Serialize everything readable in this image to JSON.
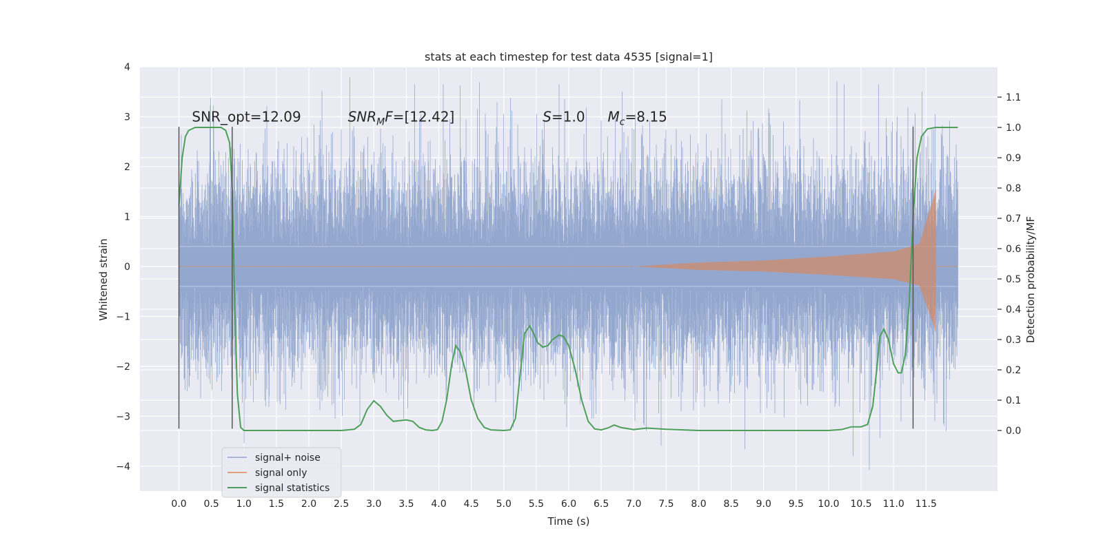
{
  "chart_data": {
    "type": "line",
    "title": "stats at each timestep for test data 4535 [signal=1]",
    "xlabel": "Time (s)",
    "ylabel": "Whitened strain",
    "y2label": "Detection probability/MF",
    "xlim": [
      -0.6,
      12.6
    ],
    "ylim": [
      -4.5,
      4.0
    ],
    "y2lim": [
      -0.2,
      1.2
    ],
    "x_ticks": [
      0.0,
      0.5,
      1.0,
      1.5,
      2.0,
      2.5,
      3.0,
      3.5,
      4.0,
      4.5,
      5.0,
      5.5,
      6.0,
      6.5,
      7.0,
      7.5,
      8.0,
      8.5,
      9.0,
      9.5,
      10.0,
      10.5,
      11.0,
      11.5
    ],
    "x_tick_labels": [
      "0.0",
      "0.5",
      "1.0",
      "1.5",
      "2.0",
      "2.5",
      "3.0",
      "3.5",
      "4.0",
      "4.5",
      "5.0",
      "5.5",
      "6.0",
      "6.5",
      "7.0",
      "7.5",
      "8.0",
      "8.5",
      "9.0",
      "9.5",
      "10.0",
      "10.5",
      "11.0",
      "11.5"
    ],
    "y_ticks": [
      4,
      3,
      2,
      1,
      0,
      -1,
      -2,
      -3,
      -4
    ],
    "y_tick_labels": [
      "4",
      "3",
      "2",
      "1",
      "0",
      "−1",
      "−2",
      "−3",
      "−4"
    ],
    "y2_ticks": [
      1.1,
      1.0,
      0.9,
      0.8,
      0.7,
      0.6,
      0.5,
      0.4,
      0.3,
      0.2,
      0.1,
      0.0
    ],
    "y2_tick_labels": [
      "1.1",
      "1.0",
      "0.9",
      "0.8",
      "0.7",
      "0.6",
      "0.5",
      "0.4",
      "0.3",
      "0.2",
      "0.1",
      "0.0"
    ],
    "grid": true,
    "legend_position": "lower-left",
    "annotations": [
      {
        "text": "SNR_opt=12.09",
        "x": 0.2,
        "y": 2.9
      },
      {
        "text": "SNR_MF=[12.42]",
        "x": 2.6,
        "y": 2.9
      },
      {
        "text": "S=1.0",
        "x": 5.6,
        "y": 2.9
      },
      {
        "text": "M_c=8.15",
        "x": 6.6,
        "y": 2.9
      }
    ],
    "vertical_lines": [
      {
        "x": 0.0,
        "y_range": [
          -3.25,
          2.8
        ]
      },
      {
        "x": 0.82,
        "y_range": [
          -3.25,
          2.8
        ]
      },
      {
        "x": 11.3,
        "y_range": [
          -3.25,
          2.8
        ]
      }
    ],
    "series": [
      {
        "name": "signal+ noise",
        "color": "#8fa4cc",
        "axis": "left",
        "t_range": [
          0.0,
          11.99
        ],
        "typical_abs_max": 2.3,
        "peak_min": -4.1,
        "peak_max": 3.65
      },
      {
        "name": "signal only",
        "color": "#dd8452",
        "axis": "left",
        "t_range": [
          0.0,
          11.99
        ],
        "onset": 7.0,
        "merger": 11.65,
        "amplitude_envelope": [
          {
            "t": 7.0,
            "a": 0.0
          },
          {
            "t": 8.0,
            "a": 0.08
          },
          {
            "t": 9.0,
            "a": 0.12
          },
          {
            "t": 10.0,
            "a": 0.2
          },
          {
            "t": 11.0,
            "a": 0.3
          },
          {
            "t": 11.4,
            "a": 0.45
          },
          {
            "t": 11.6,
            "a": 1.3
          },
          {
            "t": 11.65,
            "a": 1.55
          }
        ]
      },
      {
        "name": "signal statistics",
        "color": "#4c9f59",
        "axis": "right",
        "points": [
          [
            0.0,
            0.74
          ],
          [
            0.05,
            0.9
          ],
          [
            0.1,
            0.97
          ],
          [
            0.15,
            0.99
          ],
          [
            0.25,
            1.0
          ],
          [
            0.4,
            1.0
          ],
          [
            0.55,
            1.0
          ],
          [
            0.65,
            1.0
          ],
          [
            0.72,
            0.99
          ],
          [
            0.78,
            0.95
          ],
          [
            0.82,
            0.8
          ],
          [
            0.86,
            0.4
          ],
          [
            0.9,
            0.12
          ],
          [
            0.95,
            0.01
          ],
          [
            1.0,
            0.0
          ],
          [
            1.2,
            0.0
          ],
          [
            1.5,
            0.0
          ],
          [
            2.0,
            0.0
          ],
          [
            2.5,
            0.0
          ],
          [
            2.7,
            0.004
          ],
          [
            2.8,
            0.02
          ],
          [
            2.9,
            0.07
          ],
          [
            3.0,
            0.098
          ],
          [
            3.1,
            0.08
          ],
          [
            3.2,
            0.05
          ],
          [
            3.3,
            0.03
          ],
          [
            3.5,
            0.035
          ],
          [
            3.6,
            0.03
          ],
          [
            3.7,
            0.01
          ],
          [
            3.8,
            0.002
          ],
          [
            3.9,
            0.0
          ],
          [
            3.98,
            0.003
          ],
          [
            4.05,
            0.03
          ],
          [
            4.12,
            0.1
          ],
          [
            4.2,
            0.22
          ],
          [
            4.26,
            0.28
          ],
          [
            4.33,
            0.26
          ],
          [
            4.42,
            0.19
          ],
          [
            4.5,
            0.1
          ],
          [
            4.6,
            0.04
          ],
          [
            4.7,
            0.01
          ],
          [
            4.8,
            0.002
          ],
          [
            5.0,
            0.0
          ],
          [
            5.1,
            0.002
          ],
          [
            5.18,
            0.04
          ],
          [
            5.25,
            0.18
          ],
          [
            5.32,
            0.32
          ],
          [
            5.4,
            0.345
          ],
          [
            5.46,
            0.32
          ],
          [
            5.52,
            0.29
          ],
          [
            5.6,
            0.275
          ],
          [
            5.68,
            0.28
          ],
          [
            5.75,
            0.3
          ],
          [
            5.85,
            0.315
          ],
          [
            5.92,
            0.31
          ],
          [
            6.0,
            0.28
          ],
          [
            6.1,
            0.2
          ],
          [
            6.2,
            0.1
          ],
          [
            6.3,
            0.03
          ],
          [
            6.4,
            0.005
          ],
          [
            6.5,
            0.002
          ],
          [
            6.6,
            0.008
          ],
          [
            6.7,
            0.018
          ],
          [
            6.8,
            0.01
          ],
          [
            7.0,
            0.003
          ],
          [
            7.2,
            0.008
          ],
          [
            7.5,
            0.004
          ],
          [
            8.0,
            0.0
          ],
          [
            8.5,
            0.0
          ],
          [
            9.0,
            0.0
          ],
          [
            9.5,
            0.0
          ],
          [
            10.0,
            0.0
          ],
          [
            10.2,
            0.003
          ],
          [
            10.35,
            0.012
          ],
          [
            10.5,
            0.012
          ],
          [
            10.6,
            0.02
          ],
          [
            10.68,
            0.08
          ],
          [
            10.74,
            0.2
          ],
          [
            10.79,
            0.31
          ],
          [
            10.85,
            0.335
          ],
          [
            10.92,
            0.3
          ],
          [
            11.0,
            0.22
          ],
          [
            11.07,
            0.19
          ],
          [
            11.12,
            0.19
          ],
          [
            11.18,
            0.25
          ],
          [
            11.24,
            0.42
          ],
          [
            11.3,
            0.7
          ],
          [
            11.36,
            0.9
          ],
          [
            11.43,
            0.97
          ],
          [
            11.52,
            0.995
          ],
          [
            11.65,
            1.0
          ],
          [
            11.99,
            1.0
          ]
        ]
      }
    ]
  }
}
